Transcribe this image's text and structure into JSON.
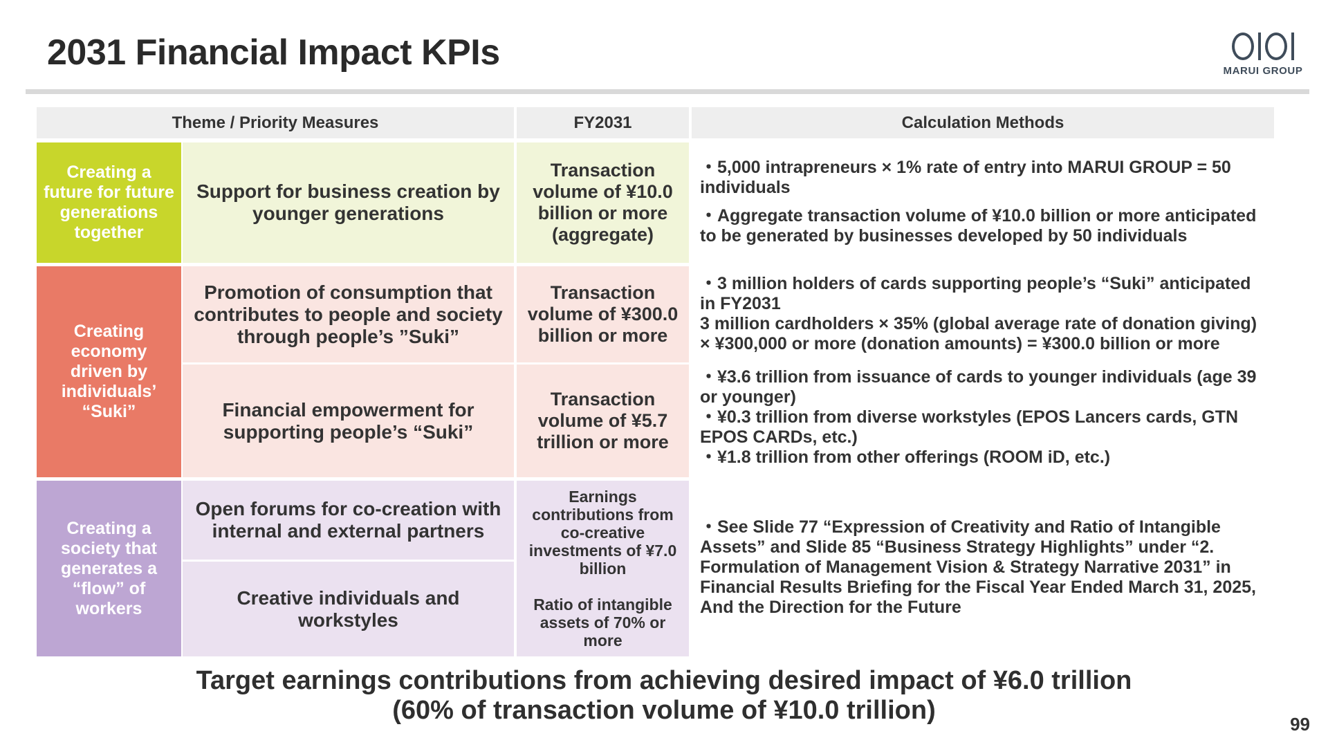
{
  "title": "2031 Financial Impact KPIs",
  "logo": {
    "text": "MARUI GROUP",
    "mark": "OIOI"
  },
  "table": {
    "headers": {
      "theme": "Theme / Priority Measures",
      "fy": "FY2031",
      "calc": "Calculation Methods"
    },
    "themes": {
      "future": "Creating a future for future generations together",
      "economy": "Creating economy driven by individuals’ “Suki”",
      "flow": "Creating a society that generates a “flow” of workers"
    },
    "measures": {
      "m1": "Support for business creation by younger generations",
      "m2": "Promotion of consumption that contributes to people and society through people’s ”Suki”",
      "m3": "Financial empowerment for supporting people’s “Suki”",
      "m4": "Open forums for co-creation with internal and external partners",
      "m5": "Creative individuals and workstyles"
    },
    "kpis": {
      "k1": "Transaction volume of ¥10.0 billion or more (aggregate)",
      "k2": "Transaction volume of ¥300.0 billion or more",
      "k3": "Transaction volume of ¥5.7 trillion or more",
      "k4a": "Earnings contributions from co-creative investments of ¥7.0 billion",
      "k4b": "Ratio of intangible assets of 70% or more"
    },
    "calc": {
      "c1a": "・5,000 intrapreneurs × 1% rate of entry into MARUI GROUP = 50 individuals",
      "c1b": "・Aggregate transaction volume of ¥10.0 billion or more anticipated to be generated by businesses developed by 50 individuals",
      "c2a": "・3 million holders of cards supporting people’s “Suki” anticipated in FY2031",
      "c2b": "3 million cardholders × 35% (global average rate of donation giving) × ¥300,000 or more (donation amounts) = ¥300.0 billion or more",
      "c3a": "・¥3.6 trillion from issuance of cards to younger individuals (age 39 or younger)",
      "c3b": "・¥0.3 trillion from diverse workstyles (EPOS Lancers cards, GTN EPOS CARDs, etc.)",
      "c3c": "・¥1.8 trillion from other offerings (ROOM iD, etc.)",
      "c4": "・See Slide 77 “Expression of Creativity and Ratio of Intangible Assets” and Slide 85 “Business Strategy Highlights” under “2. Formulation of Management Vision & Strategy Narrative 2031” in Financial Results Briefing for the Fiscal Year Ended March 31, 2025, And the Direction for the Future"
    }
  },
  "bottom": {
    "line1": "Target earnings contributions from achieving desired impact of ¥6.0 trillion",
    "line2": "(60% of transaction volume of ¥10.0 trillion)"
  },
  "page_number": "99",
  "colors": {
    "green_dark": "#c8d62b",
    "green_light": "#f1f5d9",
    "red_dark": "#e97a66",
    "red_light": "#fae5e1",
    "purple_dark": "#bda6d3",
    "purple_light": "#ebe1f0"
  }
}
